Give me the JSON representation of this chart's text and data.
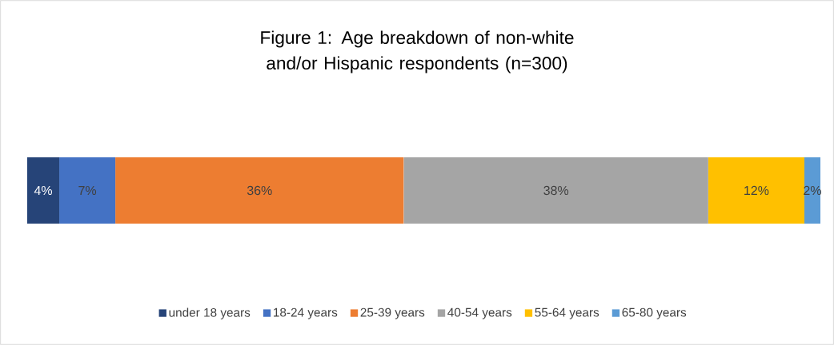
{
  "chart_data": {
    "type": "bar",
    "orientation": "horizontal",
    "stacked": true,
    "title": "Figure 1: Age breakdown of non-white and/or Hispanic respondents (n=300)",
    "categories": [
      null
    ],
    "series": [
      {
        "name": "under 18 years",
        "color": "#264478",
        "values": [
          4
        ],
        "value_labels": [
          "4%"
        ]
      },
      {
        "name": "18-24 years",
        "color": "#4472c4",
        "values": [
          7
        ],
        "value_labels": [
          "7%"
        ]
      },
      {
        "name": "25-39 years",
        "color": "#ed7d31",
        "values": [
          36
        ],
        "value_labels": [
          "36%"
        ]
      },
      {
        "name": "40-54 years",
        "color": "#a5a5a5",
        "values": [
          38
        ],
        "value_labels": [
          "38%"
        ]
      },
      {
        "name": "55-64 years",
        "color": "#ffc000",
        "values": [
          12
        ],
        "value_labels": [
          "12%"
        ]
      },
      {
        "name": "65-80 years",
        "color": "#5b9bd5",
        "values": [
          2
        ],
        "value_labels": [
          "2%"
        ]
      }
    ],
    "legend": "bottom"
  }
}
